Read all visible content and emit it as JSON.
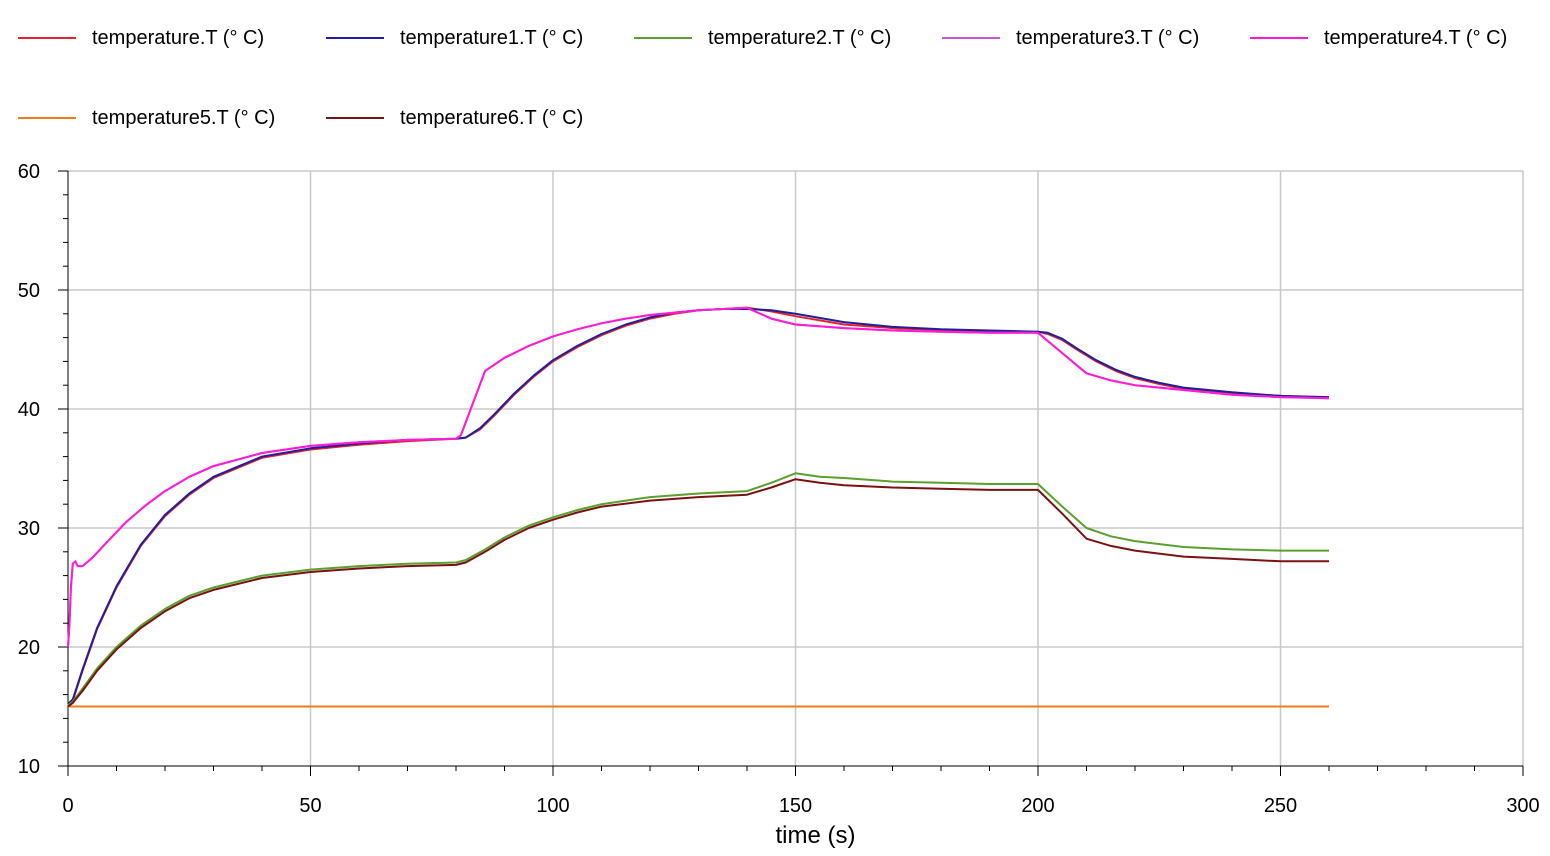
{
  "chart_data": {
    "type": "line",
    "xlabel": "time (s)",
    "ylabel": "",
    "xlim": [
      0,
      300
    ],
    "ylim": [
      10,
      60
    ],
    "xticks": [
      "0",
      "50",
      "100",
      "150",
      "200",
      "250",
      "300"
    ],
    "yticks": [
      "10",
      "20",
      "30",
      "40",
      "50",
      "60"
    ],
    "grid": true,
    "legend_position": "top",
    "series": [
      {
        "name": "temperature.T (° C)",
        "color": "#e8202a",
        "x": [
          0,
          1,
          3,
          6,
          10,
          15,
          20,
          25,
          30,
          40,
          50,
          60,
          70,
          80,
          82,
          85,
          88,
          92,
          96,
          100,
          105,
          110,
          115,
          120,
          125,
          130,
          135,
          140,
          145,
          150,
          160,
          170,
          180,
          190,
          200,
          202,
          205,
          208,
          212,
          216,
          220,
          225,
          230,
          240,
          250,
          260
        ],
        "y": [
          15,
          15.5,
          18,
          21.5,
          25,
          28.5,
          31,
          32.8,
          34.2,
          35.9,
          36.6,
          37,
          37.3,
          37.5,
          37.6,
          38.3,
          39.5,
          41.2,
          42.7,
          44,
          45.2,
          46.2,
          47,
          47.6,
          48,
          48.3,
          48.4,
          48.5,
          48.2,
          47.8,
          47.1,
          46.8,
          46.6,
          46.5,
          46.5,
          46.3,
          45.8,
          45,
          44,
          43.2,
          42.6,
          42.1,
          41.7,
          41.3,
          41.1,
          40.9
        ]
      },
      {
        "name": "temperature1.T (° C)",
        "color": "#1f1f9e",
        "x": [
          0,
          1,
          3,
          6,
          10,
          15,
          20,
          25,
          30,
          40,
          50,
          60,
          70,
          80,
          82,
          85,
          88,
          92,
          96,
          100,
          105,
          110,
          115,
          120,
          125,
          130,
          135,
          140,
          145,
          150,
          160,
          170,
          180,
          190,
          200,
          202,
          205,
          208,
          212,
          216,
          220,
          225,
          230,
          240,
          250,
          260
        ],
        "y": [
          15.2,
          15.6,
          18.1,
          21.6,
          25.1,
          28.6,
          31.1,
          32.9,
          34.3,
          36,
          36.7,
          37.1,
          37.4,
          37.5,
          37.6,
          38.4,
          39.6,
          41.3,
          42.8,
          44.1,
          45.3,
          46.3,
          47.1,
          47.7,
          48.1,
          48.3,
          48.4,
          48.4,
          48.3,
          48,
          47.3,
          46.9,
          46.7,
          46.6,
          46.5,
          46.4,
          45.9,
          45.1,
          44.1,
          43.3,
          42.7,
          42.2,
          41.8,
          41.4,
          41.1,
          41
        ]
      },
      {
        "name": "temperature2.T (° C)",
        "color": "#5aa02c",
        "x": [
          0,
          1,
          3,
          6,
          10,
          15,
          20,
          25,
          30,
          40,
          50,
          60,
          70,
          80,
          82,
          86,
          90,
          95,
          100,
          105,
          110,
          120,
          130,
          140,
          145,
          150,
          155,
          160,
          170,
          180,
          190,
          200,
          205,
          210,
          215,
          220,
          230,
          240,
          250,
          260
        ],
        "y": [
          15.1,
          15.4,
          16.5,
          18.2,
          20,
          21.8,
          23.2,
          24.3,
          25,
          26,
          26.5,
          26.8,
          27,
          27.1,
          27.3,
          28.2,
          29.2,
          30.2,
          30.9,
          31.5,
          32,
          32.6,
          32.9,
          33.1,
          33.8,
          34.6,
          34.3,
          34.2,
          33.9,
          33.8,
          33.7,
          33.7,
          31.8,
          30,
          29.3,
          28.9,
          28.4,
          28.2,
          28.1,
          28.1
        ]
      },
      {
        "name": "temperature3.T (° C)",
        "color": "#c857d6",
        "x": [
          0,
          0.3,
          0.6,
          1,
          1.5,
          2,
          3,
          5,
          8,
          12,
          16,
          20,
          25,
          30,
          40,
          50,
          60,
          70,
          80,
          81,
          86,
          90,
          95,
          100,
          105,
          110,
          115,
          120,
          125,
          130,
          135,
          140,
          145,
          150,
          160,
          170,
          180,
          190,
          200,
          205,
          210,
          215,
          220,
          230,
          240,
          250,
          260
        ],
        "y": [
          20,
          22,
          25,
          27,
          27.2,
          26.8,
          26.8,
          27.5,
          28.8,
          30.5,
          31.9,
          33.1,
          34.3,
          35.2,
          36.3,
          36.9,
          37.2,
          37.4,
          37.5,
          37.8,
          43.2,
          44.3,
          45.3,
          46.1,
          46.7,
          47.2,
          47.6,
          47.9,
          48.1,
          48.3,
          48.4,
          48.5,
          47.6,
          47.1,
          46.8,
          46.6,
          46.5,
          46.4,
          46.4,
          44.7,
          43,
          42.4,
          42,
          41.6,
          41.2,
          41,
          40.9
        ]
      },
      {
        "name": "temperature4.T (° C)",
        "color": "#ff1bd7",
        "x": [
          0,
          0.3,
          0.6,
          1,
          1.5,
          2,
          3,
          5,
          8,
          12,
          16,
          20,
          25,
          30,
          40,
          50,
          60,
          70,
          80,
          81,
          86,
          90,
          95,
          100,
          105,
          110,
          115,
          120,
          125,
          130,
          135,
          140,
          145,
          150,
          160,
          170,
          180,
          190,
          200,
          205,
          210,
          215,
          220,
          230,
          240,
          250,
          260
        ],
        "y": [
          20,
          22,
          25,
          27,
          27.2,
          26.8,
          26.8,
          27.5,
          28.8,
          30.5,
          31.9,
          33.1,
          34.3,
          35.2,
          36.3,
          36.9,
          37.2,
          37.4,
          37.5,
          37.8,
          43.2,
          44.3,
          45.3,
          46.1,
          46.7,
          47.2,
          47.6,
          47.9,
          48.1,
          48.3,
          48.4,
          48.5,
          47.6,
          47.1,
          46.8,
          46.6,
          46.5,
          46.4,
          46.4,
          44.7,
          43,
          42.4,
          42,
          41.6,
          41.2,
          41,
          40.9
        ]
      },
      {
        "name": "temperature5.T (° C)",
        "color": "#f07a1c",
        "x": [
          0,
          260
        ],
        "y": [
          15,
          15
        ]
      },
      {
        "name": "temperature6.T (° C)",
        "color": "#7a1212",
        "x": [
          0,
          1,
          3,
          6,
          10,
          15,
          20,
          25,
          30,
          40,
          50,
          60,
          70,
          80,
          82,
          86,
          90,
          95,
          100,
          105,
          110,
          120,
          130,
          140,
          145,
          150,
          155,
          160,
          170,
          180,
          190,
          200,
          205,
          210,
          215,
          220,
          230,
          240,
          250,
          260
        ],
        "y": [
          15,
          15.3,
          16.3,
          18,
          19.8,
          21.6,
          23,
          24.1,
          24.8,
          25.8,
          26.3,
          26.6,
          26.8,
          26.9,
          27.1,
          28,
          29,
          30,
          30.7,
          31.3,
          31.8,
          32.3,
          32.6,
          32.8,
          33.4,
          34.1,
          33.8,
          33.6,
          33.4,
          33.3,
          33.2,
          33.2,
          31.2,
          29.1,
          28.5,
          28.1,
          27.6,
          27.4,
          27.2,
          27.2
        ]
      }
    ]
  }
}
